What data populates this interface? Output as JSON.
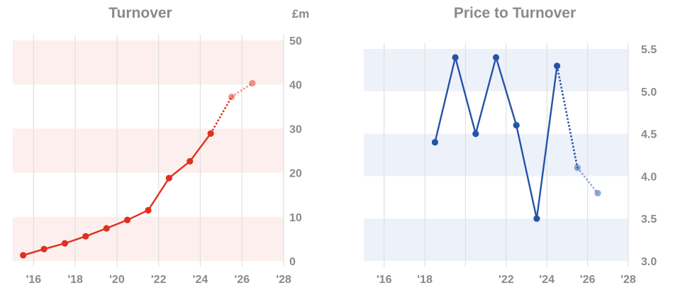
{
  "chart_data": [
    {
      "type": "line",
      "title": "Turnover",
      "unit": "£m",
      "x_ticks": [
        "'16",
        "'18",
        "'20",
        "'22",
        "'24",
        "'26",
        "'28"
      ],
      "x_tick_values": [
        2016,
        2018,
        2020,
        2022,
        2024,
        2026,
        2028
      ],
      "xlim": [
        2015,
        2028
      ],
      "y_ticks": [
        "0",
        "10",
        "20",
        "30",
        "40",
        "50"
      ],
      "y_tick_values": [
        0,
        10,
        20,
        30,
        40,
        50
      ],
      "ylim": [
        0,
        50
      ],
      "series": [
        {
          "role": "actual",
          "x": [
            2015.5,
            2016.5,
            2017.5,
            2018.5,
            2019.5,
            2020.5,
            2021.5,
            2022.5,
            2023.5,
            2024.5
          ],
          "y": [
            1.3,
            2.7,
            4.0,
            5.6,
            7.4,
            9.3,
            11.5,
            18.8,
            22.6,
            28.9
          ]
        },
        {
          "role": "forecast",
          "x": [
            2025.5,
            2026.5
          ],
          "y": [
            37.2,
            40.3
          ]
        }
      ],
      "colors": {
        "line": "#e0301e",
        "band": "#fcefed",
        "grid": "#e0e0e0"
      }
    },
    {
      "type": "line",
      "title": "Price to Turnover",
      "x_ticks": [
        "'16",
        "'18",
        "'22",
        "'24",
        "'26",
        "'28"
      ],
      "x_tick_values": [
        2016,
        2018,
        2022,
        2024,
        2026,
        2028
      ],
      "x_grid_values": [
        2016,
        2018,
        2020,
        2022,
        2024,
        2026,
        2028
      ],
      "xlim": [
        2015,
        2028
      ],
      "y_ticks": [
        "3.0",
        "3.5",
        "4.0",
        "4.5",
        "5.0",
        "5.5"
      ],
      "y_tick_values": [
        3.0,
        3.5,
        4.0,
        4.5,
        5.0,
        5.5
      ],
      "ylim": [
        3.0,
        5.5
      ],
      "series": [
        {
          "role": "actual",
          "x": [
            2018.5,
            2019.5,
            2020.5,
            2021.5,
            2022.5,
            2023.5,
            2024.5
          ],
          "y": [
            4.4,
            5.4,
            4.5,
            5.4,
            4.6,
            3.5,
            5.3
          ]
        },
        {
          "role": "forecast",
          "x": [
            2025.5,
            2026.5
          ],
          "y": [
            4.1,
            3.8
          ]
        }
      ],
      "colors": {
        "line": "#2553a8",
        "band": "#edf1f9",
        "grid": "#e0e0e0"
      }
    }
  ]
}
